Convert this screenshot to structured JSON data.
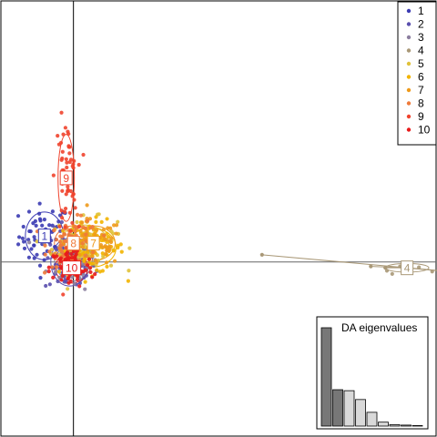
{
  "chart_data": {
    "type": "scatter",
    "title": "",
    "xlabel": "",
    "ylabel": "",
    "xlim": [
      -2.0,
      10.0
    ],
    "ylim": [
      -6.0,
      9.0
    ],
    "axes_cross": [
      0,
      0
    ],
    "grid": false,
    "legend_placement": "top-right",
    "series": [
      {
        "name": "1",
        "color": "#3b3bb3",
        "label_text": "1",
        "centroid": [
          -0.8,
          0.9
        ],
        "spread": [
          0.35,
          0.55
        ],
        "n": 60
      },
      {
        "name": "2",
        "color": "#5a4fae",
        "label_text": "",
        "centroid": [
          -0.1,
          0.0
        ],
        "spread": [
          0.35,
          0.55
        ],
        "n": 60
      },
      {
        "name": "3",
        "color": "#8c7f9f",
        "label_text": "",
        "centroid": [
          0.0,
          0.1
        ],
        "spread": [
          0.35,
          0.5
        ],
        "n": 60
      },
      {
        "name": "4",
        "color": "#a99877",
        "label_text": "4",
        "centroid": [
          9.2,
          -0.2
        ],
        "spread": [
          0.4,
          0.1
        ],
        "n": 8
      },
      {
        "name": "5",
        "color": "#e0c23a",
        "label_text": "",
        "centroid": [
          0.3,
          0.6
        ],
        "spread": [
          0.45,
          0.45
        ],
        "n": 80
      },
      {
        "name": "6",
        "color": "#f2b400",
        "label_text": "",
        "centroid": [
          0.5,
          0.5
        ],
        "spread": [
          0.45,
          0.45
        ],
        "n": 80
      },
      {
        "name": "7",
        "color": "#ee9a1c",
        "label_text": "7",
        "centroid": [
          0.55,
          0.65
        ],
        "spread": [
          0.4,
          0.4
        ],
        "n": 80
      },
      {
        "name": "8",
        "color": "#ef7a3a",
        "label_text": "8",
        "centroid": [
          0.0,
          0.65
        ],
        "spread": [
          0.35,
          0.4
        ],
        "n": 80
      },
      {
        "name": "9",
        "color": "#f0442e",
        "label_text": "9",
        "centroid": [
          -0.2,
          2.9
        ],
        "spread": [
          0.15,
          1.0
        ],
        "n": 60
      },
      {
        "name": "10",
        "color": "#e81a1a",
        "label_text": "10",
        "centroid": [
          -0.05,
          -0.2
        ],
        "spread": [
          0.3,
          0.35
        ],
        "n": 80
      }
    ],
    "outliers": [
      {
        "series": "4",
        "x": 5.2,
        "y": 0.25
      },
      {
        "series": "4",
        "x": 8.2,
        "y": -0.15
      },
      {
        "series": "4",
        "x": 8.6,
        "y": -0.2
      }
    ],
    "inset": {
      "title": "DA eigenvalues",
      "values": [
        1.0,
        0.37,
        0.36,
        0.27,
        0.14,
        0.04,
        0.015,
        0.01,
        0.005
      ],
      "colors": [
        "#777777",
        "#777777",
        "#d9d9d9",
        "#d9d9d9",
        "#d9d9d9",
        "#d9d9d9",
        "#d9d9d9",
        "#d9d9d9",
        "#d9d9d9"
      ]
    }
  }
}
